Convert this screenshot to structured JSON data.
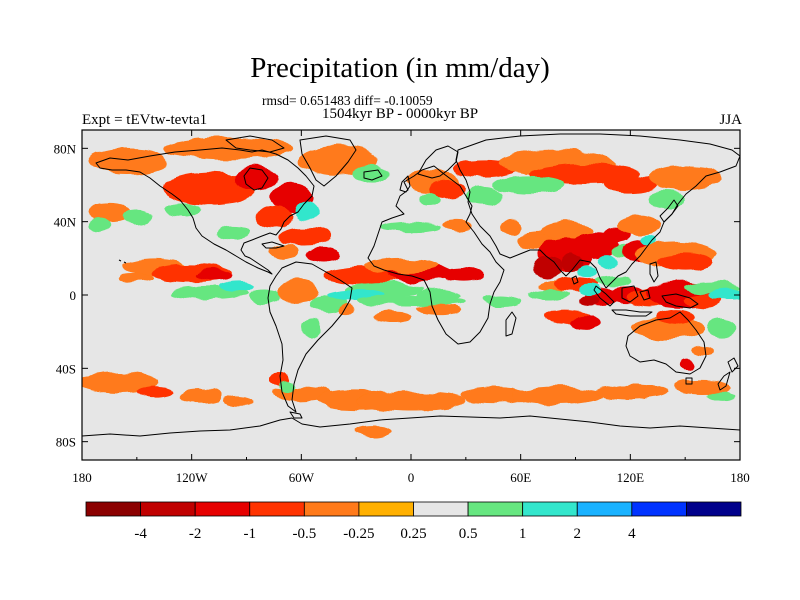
{
  "chart_data": {
    "type": "heatmap",
    "title": "Precipitation (in mm/day)",
    "subtitle_stats": "rmsd= 0.651483 diff= -0.10059",
    "subtitle_period": "1504kyr BP - 0000kyr BP",
    "left_label": "Expt = tEVtw-tevta1",
    "right_label": "JJA",
    "x_axis": {
      "range": [
        -180,
        180
      ],
      "ticks": [
        {
          "value": -180,
          "label": "180"
        },
        {
          "value": -120,
          "label": "120W"
        },
        {
          "value": -60,
          "label": "60W"
        },
        {
          "value": 0,
          "label": "0"
        },
        {
          "value": 60,
          "label": "60E"
        },
        {
          "value": 120,
          "label": "120E"
        },
        {
          "value": 180,
          "label": "180"
        }
      ]
    },
    "y_axis": {
      "range": [
        -90,
        90
      ],
      "ticks": [
        {
          "value": 80,
          "label": "80N"
        },
        {
          "value": 40,
          "label": "40N"
        },
        {
          "value": 0,
          "label": "0"
        },
        {
          "value": -40,
          "label": "40S"
        },
        {
          "value": -80,
          "label": "80S"
        }
      ]
    },
    "colorbar": {
      "colors": [
        "#8b0000",
        "#c00000",
        "#e60000",
        "#ff3300",
        "#ff7a1a",
        "#ffb000",
        "#e6e6e6",
        "#66e680",
        "#33e6cc",
        "#1ab2ff",
        "#0033ff",
        "#00008b"
      ],
      "labels": [
        "-4",
        "-2",
        "-1",
        "-0.5",
        "-0.25",
        "0.25",
        "0.5",
        "1",
        "2",
        "4"
      ]
    },
    "regions": [
      {
        "lon": -155,
        "lat": 73,
        "rx": 22,
        "ry": 7,
        "v": -0.3
      },
      {
        "lon": -100,
        "lat": 80,
        "rx": 35,
        "ry": 6,
        "v": -0.3
      },
      {
        "lon": -40,
        "lat": 73,
        "rx": 22,
        "ry": 8,
        "v": -0.3
      },
      {
        "lon": -110,
        "lat": 58,
        "rx": 26,
        "ry": 9,
        "v": -0.7
      },
      {
        "lon": -85,
        "lat": 64,
        "rx": 12,
        "ry": 6,
        "v": -1.2
      },
      {
        "lon": -65,
        "lat": 53,
        "rx": 12,
        "ry": 8,
        "v": -1.2
      },
      {
        "lon": -57,
        "lat": 46,
        "rx": 7,
        "ry": 5,
        "v": 1.5
      },
      {
        "lon": -75,
        "lat": 42,
        "rx": 10,
        "ry": 6,
        "v": -0.7
      },
      {
        "lon": -22,
        "lat": 66,
        "rx": 10,
        "ry": 5,
        "v": 0.6
      },
      {
        "lon": -165,
        "lat": 45,
        "rx": 12,
        "ry": 5,
        "v": -0.3
      },
      {
        "lon": -170,
        "lat": 38,
        "rx": 6,
        "ry": 4,
        "v": 0.6
      },
      {
        "lon": -150,
        "lat": 43,
        "rx": 8,
        "ry": 4,
        "v": 0.6
      },
      {
        "lon": -125,
        "lat": 46,
        "rx": 10,
        "ry": 4,
        "v": 0.6
      },
      {
        "lon": -97,
        "lat": 34,
        "rx": 8,
        "ry": 4,
        "v": 0.6
      },
      {
        "lon": -58,
        "lat": 32,
        "rx": 14,
        "ry": 5,
        "v": -0.7
      },
      {
        "lon": -48,
        "lat": 22,
        "rx": 10,
        "ry": 4,
        "v": -1.2
      },
      {
        "lon": -70,
        "lat": 24,
        "rx": 8,
        "ry": 4,
        "v": -0.3
      },
      {
        "lon": -140,
        "lat": 15,
        "rx": 18,
        "ry": 5,
        "v": -0.3
      },
      {
        "lon": -120,
        "lat": 12,
        "rx": 22,
        "ry": 5,
        "v": -0.7
      },
      {
        "lon": -108,
        "lat": 11,
        "rx": 10,
        "ry": 3,
        "v": -1.2
      },
      {
        "lon": -150,
        "lat": 9,
        "rx": 10,
        "ry": 2,
        "v": -0.3
      },
      {
        "lon": -110,
        "lat": 1,
        "rx": 22,
        "ry": 4,
        "v": 0.6
      },
      {
        "lon": -95,
        "lat": 5,
        "rx": 10,
        "ry": 3,
        "v": 1.5
      },
      {
        "lon": -80,
        "lat": -1,
        "rx": 8,
        "ry": 4,
        "v": 0.6
      },
      {
        "lon": -62,
        "lat": 2,
        "rx": 12,
        "ry": 6,
        "v": -0.3
      },
      {
        "lon": -45,
        "lat": -5,
        "rx": 10,
        "ry": 5,
        "v": 0.6
      },
      {
        "lon": -55,
        "lat": -18,
        "rx": 6,
        "ry": 5,
        "v": 0.6
      },
      {
        "lon": -35,
        "lat": -8,
        "rx": 4,
        "ry": 3,
        "v": -0.3
      },
      {
        "lon": -25,
        "lat": 11,
        "rx": 22,
        "ry": 5,
        "v": -0.7
      },
      {
        "lon": 5,
        "lat": 12,
        "rx": 18,
        "ry": 5,
        "v": -1.2
      },
      {
        "lon": 28,
        "lat": 11,
        "rx": 12,
        "ry": 4,
        "v": -1.2
      },
      {
        "lon": -5,
        "lat": 16,
        "rx": 20,
        "ry": 4,
        "v": -0.3
      },
      {
        "lon": -15,
        "lat": 3,
        "rx": 22,
        "ry": 4,
        "v": 0.6
      },
      {
        "lon": -30,
        "lat": 0,
        "rx": 16,
        "ry": 3,
        "v": 1.5
      },
      {
        "lon": 15,
        "lat": 0,
        "rx": 12,
        "ry": 3,
        "v": 0.6
      },
      {
        "lon": 0,
        "lat": -3,
        "rx": 30,
        "ry": 3,
        "v": 0.6
      },
      {
        "lon": -10,
        "lat": -12,
        "rx": 10,
        "ry": 3,
        "v": -0.3
      },
      {
        "lon": 15,
        "lat": -8,
        "rx": 12,
        "ry": 3,
        "v": -0.3
      },
      {
        "lon": 0,
        "lat": 37,
        "rx": 16,
        "ry": 3,
        "v": 0.6
      },
      {
        "lon": 25,
        "lat": 38,
        "rx": 8,
        "ry": 3,
        "v": -0.3
      },
      {
        "lon": 40,
        "lat": 54,
        "rx": 10,
        "ry": 5,
        "v": 0.6
      },
      {
        "lon": 12,
        "lat": 62,
        "rx": 14,
        "ry": 6,
        "v": -0.3
      },
      {
        "lon": 20,
        "lat": 58,
        "rx": 10,
        "ry": 5,
        "v": -0.7
      },
      {
        "lon": 10,
        "lat": 52,
        "rx": 6,
        "ry": 4,
        "v": 0.6
      },
      {
        "lon": 40,
        "lat": 69,
        "rx": 18,
        "ry": 5,
        "v": -0.7
      },
      {
        "lon": 80,
        "lat": 72,
        "rx": 32,
        "ry": 7,
        "v": -0.3
      },
      {
        "lon": 95,
        "lat": 66,
        "rx": 30,
        "ry": 6,
        "v": -0.7
      },
      {
        "lon": 65,
        "lat": 60,
        "rx": 20,
        "ry": 5,
        "v": 0.6
      },
      {
        "lon": 120,
        "lat": 60,
        "rx": 15,
        "ry": 5,
        "v": -0.7
      },
      {
        "lon": 150,
        "lat": 64,
        "rx": 20,
        "ry": 7,
        "v": -0.3
      },
      {
        "lon": 140,
        "lat": 52,
        "rx": 10,
        "ry": 5,
        "v": 0.6
      },
      {
        "lon": 55,
        "lat": 37,
        "rx": 6,
        "ry": 4,
        "v": -0.3
      },
      {
        "lon": 70,
        "lat": 30,
        "rx": 12,
        "ry": 5,
        "v": -0.3
      },
      {
        "lon": 85,
        "lat": 35,
        "rx": 14,
        "ry": 5,
        "v": -0.3
      },
      {
        "lon": 85,
        "lat": 22,
        "rx": 15,
        "ry": 9,
        "v": -1.2
      },
      {
        "lon": 88,
        "lat": 18,
        "rx": 6,
        "ry": 5,
        "v": -3.0
      },
      {
        "lon": 75,
        "lat": 15,
        "rx": 8,
        "ry": 6,
        "v": -3.0
      },
      {
        "lon": 100,
        "lat": 27,
        "rx": 14,
        "ry": 7,
        "v": -1.2
      },
      {
        "lon": 112,
        "lat": 33,
        "rx": 8,
        "ry": 4,
        "v": -1.2
      },
      {
        "lon": 125,
        "lat": 38,
        "rx": 12,
        "ry": 5,
        "v": -0.3
      },
      {
        "lon": 118,
        "lat": 24,
        "rx": 8,
        "ry": 4,
        "v": 0.6
      },
      {
        "lon": 108,
        "lat": 18,
        "rx": 5,
        "ry": 4,
        "v": 1.5
      },
      {
        "lon": 96,
        "lat": 13,
        "rx": 5,
        "ry": 3,
        "v": 1.5
      },
      {
        "lon": 125,
        "lat": 24,
        "rx": 10,
        "ry": 6,
        "v": -1.2
      },
      {
        "lon": 130,
        "lat": 30,
        "rx": 5,
        "ry": 3,
        "v": 1.5
      },
      {
        "lon": 145,
        "lat": 22,
        "rx": 22,
        "ry": 7,
        "v": -0.3
      },
      {
        "lon": 150,
        "lat": 18,
        "rx": 15,
        "ry": 5,
        "v": -0.7
      },
      {
        "lon": 80,
        "lat": 5,
        "rx": 10,
        "ry": 3,
        "v": -0.3
      },
      {
        "lon": 90,
        "lat": 6,
        "rx": 12,
        "ry": 4,
        "v": -0.7
      },
      {
        "lon": 105,
        "lat": -1,
        "rx": 10,
        "ry": 5,
        "v": -1.2
      },
      {
        "lon": 98,
        "lat": -3,
        "rx": 6,
        "ry": 3,
        "v": -3.0
      },
      {
        "lon": 118,
        "lat": 0,
        "rx": 10,
        "ry": 5,
        "v": -1.2
      },
      {
        "lon": 130,
        "lat": -2,
        "rx": 12,
        "ry": 5,
        "v": -0.7
      },
      {
        "lon": 148,
        "lat": 0,
        "rx": 20,
        "ry": 7,
        "v": -1.2
      },
      {
        "lon": 160,
        "lat": -3,
        "rx": 10,
        "ry": 4,
        "v": -0.7
      },
      {
        "lon": 165,
        "lat": 4,
        "rx": 16,
        "ry": 3,
        "v": 0.6
      },
      {
        "lon": 175,
        "lat": 0,
        "rx": 12,
        "ry": 3,
        "v": 1.5
      },
      {
        "lon": 75,
        "lat": 0,
        "rx": 12,
        "ry": 3,
        "v": 0.6
      },
      {
        "lon": 50,
        "lat": -3,
        "rx": 10,
        "ry": 3,
        "v": 0.6
      },
      {
        "lon": 110,
        "lat": 8,
        "rx": 10,
        "ry": 3,
        "v": 0.6
      },
      {
        "lon": 98,
        "lat": 3,
        "rx": 6,
        "ry": 3,
        "v": 1.5
      },
      {
        "lon": 85,
        "lat": -12,
        "rx": 12,
        "ry": 4,
        "v": -0.7
      },
      {
        "lon": 95,
        "lat": -15,
        "rx": 8,
        "ry": 4,
        "v": -1.2
      },
      {
        "lon": 140,
        "lat": -18,
        "rx": 20,
        "ry": 6,
        "v": -0.3
      },
      {
        "lon": 145,
        "lat": -12,
        "rx": 10,
        "ry": 4,
        "v": -0.7
      },
      {
        "lon": 170,
        "lat": -18,
        "rx": 8,
        "ry": 5,
        "v": 0.6
      },
      {
        "lon": 160,
        "lat": -30,
        "rx": 6,
        "ry": 3,
        "v": -0.3
      },
      {
        "lon": 150,
        "lat": -38,
        "rx": 4,
        "ry": 3,
        "v": -1.2
      },
      {
        "lon": -160,
        "lat": -48,
        "rx": 22,
        "ry": 6,
        "v": -0.3
      },
      {
        "lon": -140,
        "lat": -53,
        "rx": 10,
        "ry": 3,
        "v": -0.7
      },
      {
        "lon": -115,
        "lat": -55,
        "rx": 12,
        "ry": 4,
        "v": -0.3
      },
      {
        "lon": -95,
        "lat": -58,
        "rx": 8,
        "ry": 3,
        "v": -0.3
      },
      {
        "lon": -60,
        "lat": -54,
        "rx": 16,
        "ry": 4,
        "v": -0.3
      },
      {
        "lon": -72,
        "lat": -46,
        "rx": 5,
        "ry": 4,
        "v": -0.7
      },
      {
        "lon": -68,
        "lat": -50,
        "rx": 4,
        "ry": 3,
        "v": 0.6
      },
      {
        "lon": -30,
        "lat": -57,
        "rx": 22,
        "ry": 5,
        "v": -0.3
      },
      {
        "lon": 0,
        "lat": -58,
        "rx": 30,
        "ry": 5,
        "v": -0.3
      },
      {
        "lon": 45,
        "lat": -55,
        "rx": 18,
        "ry": 4,
        "v": -0.3
      },
      {
        "lon": 80,
        "lat": -55,
        "rx": 25,
        "ry": 5,
        "v": -0.3
      },
      {
        "lon": 120,
        "lat": -53,
        "rx": 20,
        "ry": 4,
        "v": -0.3
      },
      {
        "lon": 160,
        "lat": -50,
        "rx": 16,
        "ry": 4,
        "v": -0.3
      },
      {
        "lon": 170,
        "lat": -55,
        "rx": 8,
        "ry": 3,
        "v": 0.6
      },
      {
        "lon": -20,
        "lat": -75,
        "rx": 10,
        "ry": 3,
        "v": -0.3
      }
    ]
  }
}
